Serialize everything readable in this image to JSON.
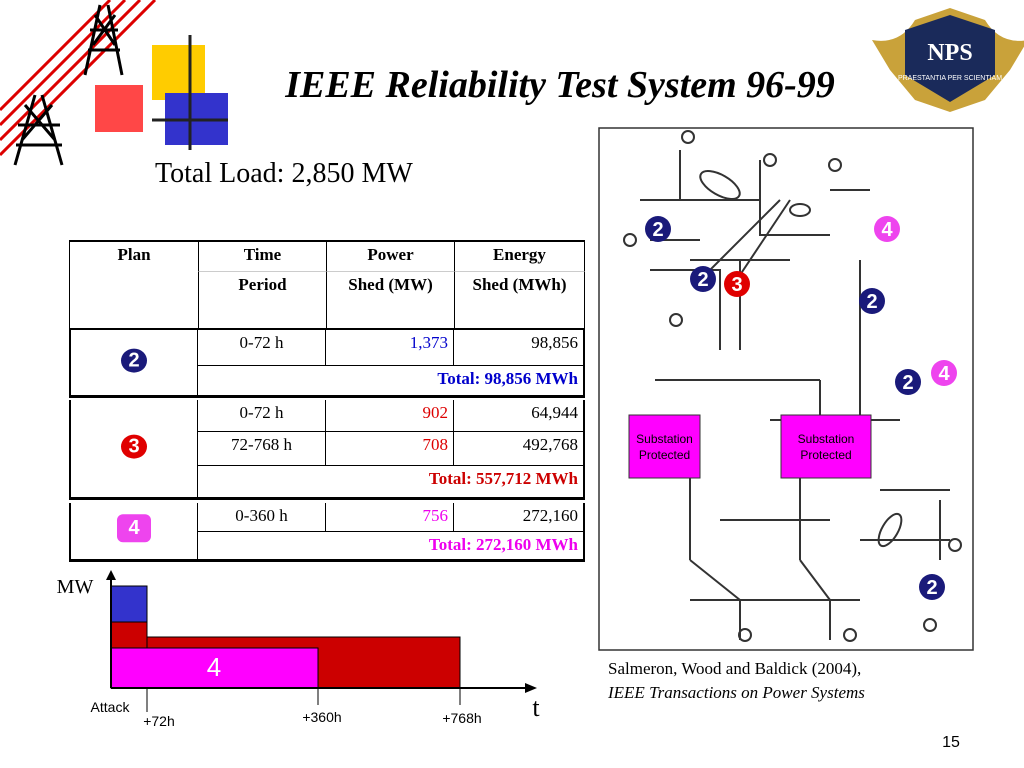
{
  "slide": {
    "title": "IEEE Reliability Test System 96-99",
    "subtitle": "Total Load: 2,850 MW",
    "logo": {
      "text": "NPS",
      "motto": "PRAESTANTIA PER SCIENTIAM"
    },
    "page_number": "15",
    "citation": {
      "line1": "Salmeron, Wood and Baldick (2004),",
      "line2": "IEEE Transactions on Power Systems"
    },
    "table": {
      "header": [
        {
          "top": "Plan"
        },
        {
          "top": "Time",
          "bottom": "Period"
        },
        {
          "top": "Power",
          "bottom": "Shed (MW)"
        },
        {
          "top": "Energy",
          "bottom": "Shed (MWh)"
        }
      ],
      "plans": [
        {
          "badge": "2",
          "color": "#1a1a7a",
          "rows": [
            [
              "0-72 h",
              "1,373",
              "98,856"
            ]
          ],
          "total": "Total: 98,856 MWh",
          "total_color": "#0000cc",
          "power_color": "#0000cc"
        },
        {
          "badge": "3",
          "color": "#e00000",
          "rows": [
            [
              "0-72 h",
              "902",
              "64,944"
            ],
            [
              "72-768 h",
              "708",
              "492,768"
            ]
          ],
          "total": "Total: 557,712 MWh",
          "total_color": "#cc0000",
          "power_color": "#dd0000"
        },
        {
          "badge": "4",
          "color": "#ee44ee",
          "rows": [
            [
              "0-360 h",
              "756",
              "272,160"
            ]
          ],
          "total": "Total: 272,160 MWh",
          "total_color": "#ee00ee",
          "power_color": "#ee00ee"
        }
      ]
    },
    "timeline": {
      "y_label": "MW",
      "x_label": "t",
      "bar_label": "4",
      "attack": "Attack",
      "ticks": [
        "+72h",
        "+360h",
        "+768h"
      ]
    },
    "diagram": {
      "substations": [
        "Substation Protected",
        "Substation Protected"
      ],
      "badges": [
        {
          "label": "2",
          "color": "#1a1a7a"
        },
        {
          "label": "2",
          "color": "#1a1a7a"
        },
        {
          "label": "3",
          "color": "#e00000"
        },
        {
          "label": "4",
          "color": "#ee44ee"
        },
        {
          "label": "2",
          "color": "#1a1a7a"
        },
        {
          "label": "2",
          "color": "#1a1a7a"
        },
        {
          "label": "4",
          "color": "#ee44ee"
        },
        {
          "label": "2",
          "color": "#1a1a7a"
        }
      ]
    }
  }
}
